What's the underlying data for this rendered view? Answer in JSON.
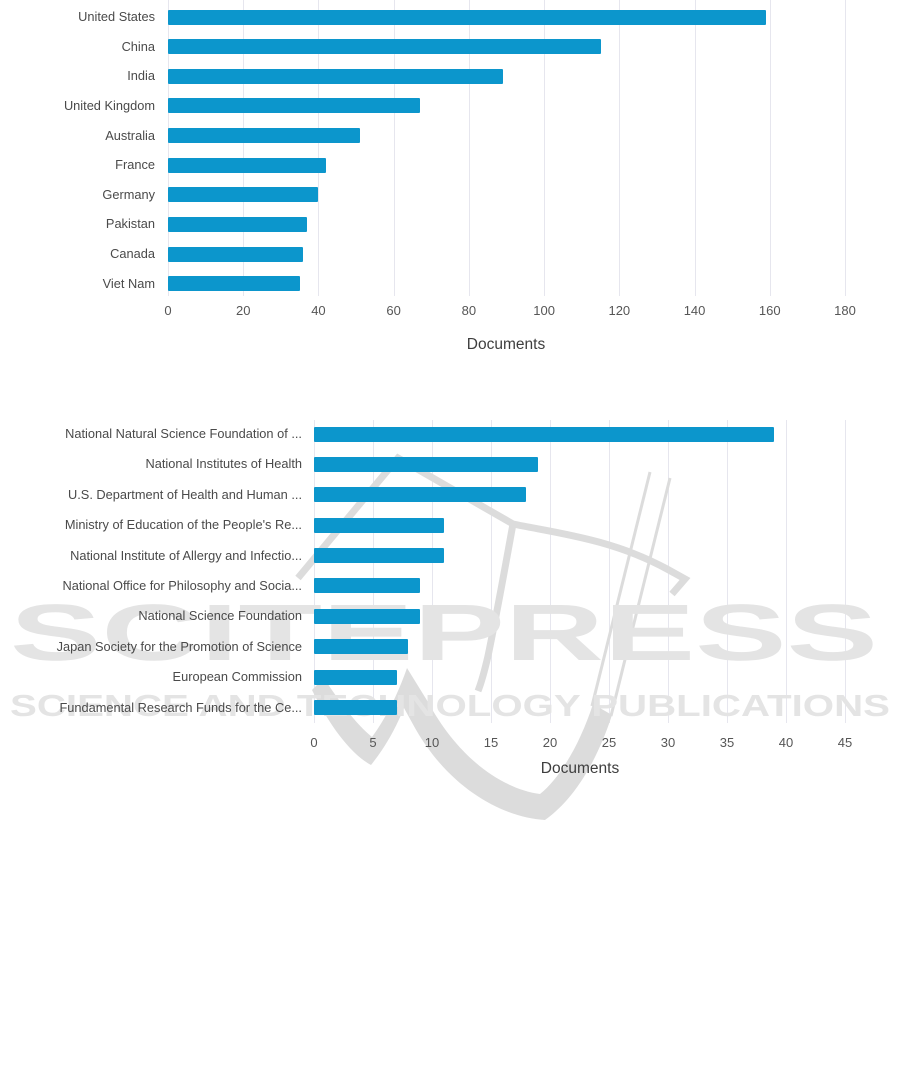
{
  "watermark": {
    "line1": "SCITEPRESS",
    "line2": "SCIENCE AND TECHNOLOGY PUBLICATIONS",
    "text_color": "#e4e4e4",
    "logo_color": "#dcdcdc"
  },
  "chart_data": [
    {
      "type": "bar",
      "orientation": "horizontal",
      "categories": [
        "United States",
        "China",
        "India",
        "United Kingdom",
        "Australia",
        "France",
        "Germany",
        "Pakistan",
        "Canada",
        "Viet Nam"
      ],
      "values": [
        159,
        115,
        89,
        67,
        51,
        42,
        40,
        37,
        36,
        35
      ],
      "xlabel": "Documents",
      "xlim": [
        0,
        180
      ],
      "xticks": [
        0,
        20,
        40,
        60,
        80,
        100,
        120,
        140,
        160,
        180
      ],
      "bar_color": "#0c96cc",
      "grid": true,
      "legend": false
    },
    {
      "type": "bar",
      "orientation": "horizontal",
      "categories": [
        "National Natural Science Foundation of ...",
        "National Institutes of Health",
        "U.S. Department of Health and Human ...",
        "Ministry of Education of the People's Re...",
        "National Institute of Allergy and Infectio...",
        "National Office for Philosophy and Socia...",
        "National Science Foundation",
        "Japan Society for the Promotion of Science",
        "European Commission",
        "Fundamental Research Funds for the Ce..."
      ],
      "values": [
        39,
        19,
        18,
        11,
        11,
        9,
        9,
        8,
        7,
        7
      ],
      "xlabel": "Documents",
      "xlim": [
        0,
        45
      ],
      "xticks": [
        0,
        5,
        10,
        15,
        20,
        25,
        30,
        35,
        40,
        45
      ],
      "bar_color": "#0c96cc",
      "grid": true,
      "legend": false
    }
  ]
}
